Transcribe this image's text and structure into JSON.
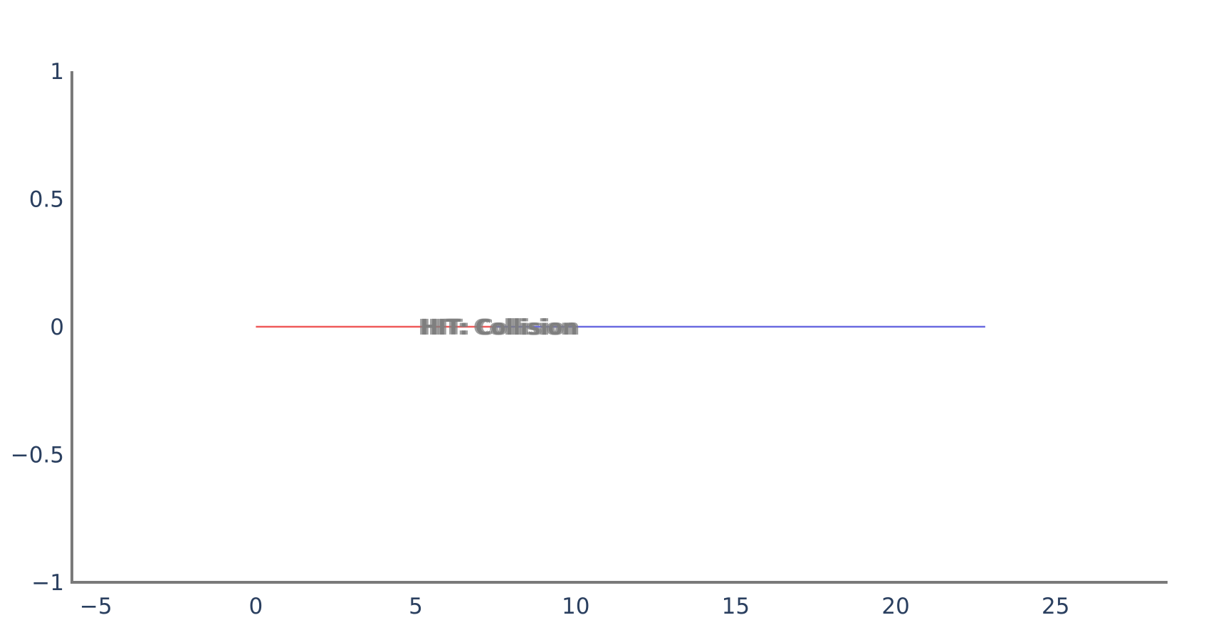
{
  "chart_data": {
    "type": "line",
    "title": "",
    "xlabel": "",
    "ylabel": "",
    "xlim": [
      -5.75,
      28.5
    ],
    "ylim": [
      -1,
      1
    ],
    "x_ticks": [
      -5,
      0,
      5,
      10,
      15,
      20,
      25
    ],
    "x_tick_labels": [
      "−5",
      "0",
      "5",
      "10",
      "15",
      "20",
      "25"
    ],
    "y_ticks": [
      -1,
      -0.5,
      0,
      0.5,
      1
    ],
    "y_tick_labels": [
      "−1",
      "−0.5",
      "0",
      "0.5",
      "1"
    ],
    "grid": false,
    "legend": "none",
    "series": [
      {
        "color": "#ef5a5a",
        "x": [
          0,
          7.5
        ],
        "y": [
          0,
          0
        ]
      },
      {
        "color": "#6a6ae0",
        "x": [
          7.5,
          22.8
        ],
        "y": [
          0,
          0
        ]
      }
    ],
    "annotations": [
      {
        "text": "HIT: Collision",
        "x": 7.6,
        "y": 0,
        "color": "#7f7f7f",
        "overlaid": true
      }
    ],
    "colors": {
      "axis": "#7a7a7a",
      "tick_text": "#2a3f5f",
      "annotation": "#7f7f7f"
    }
  }
}
